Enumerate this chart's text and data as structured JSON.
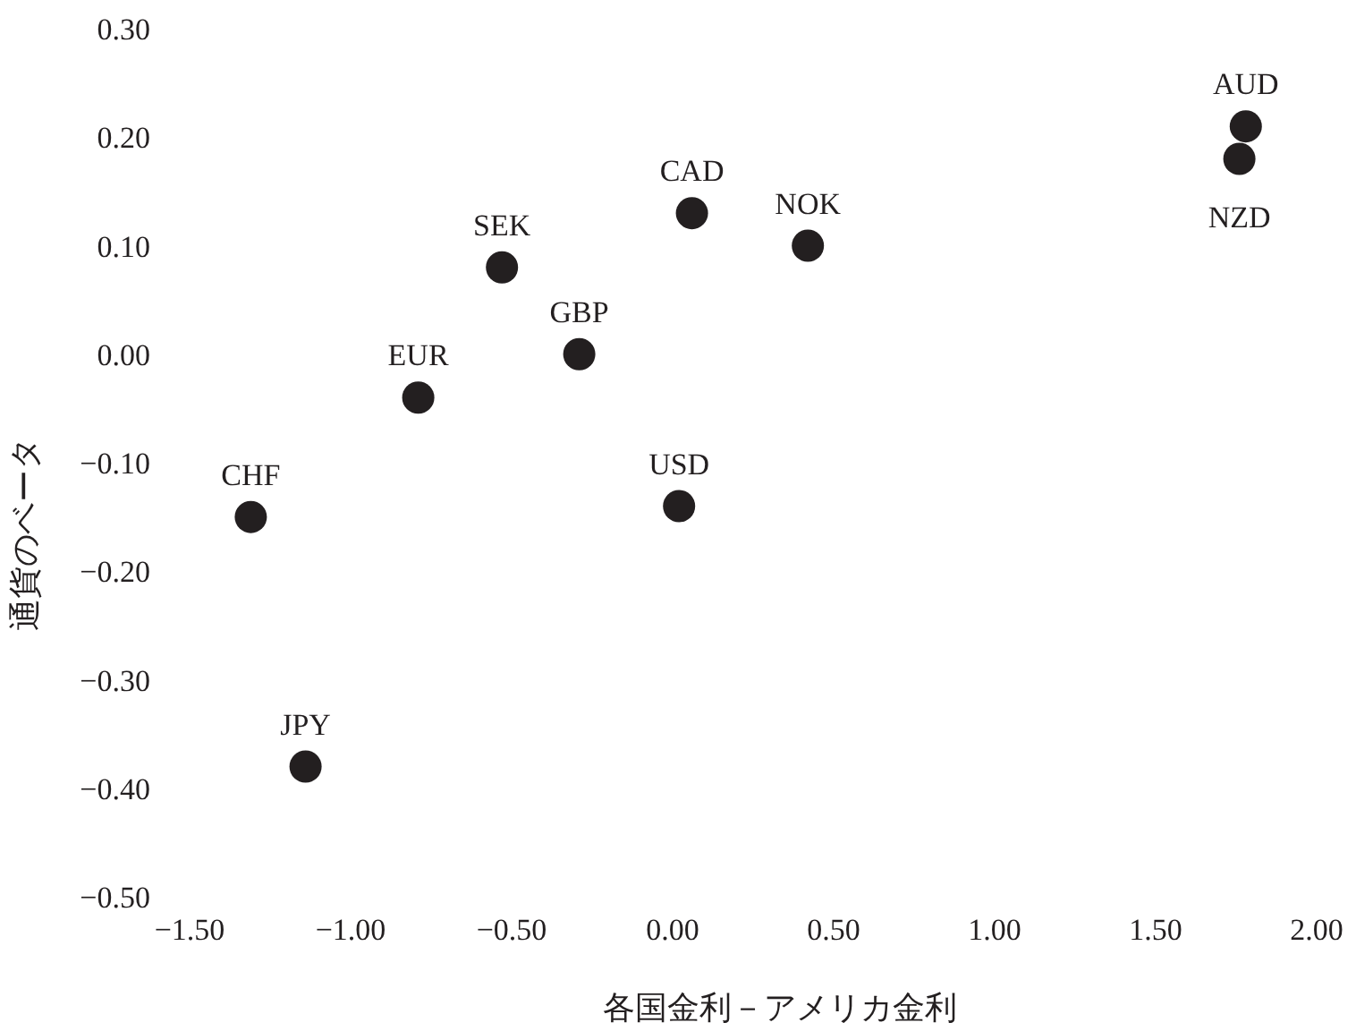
{
  "chart_data": {
    "type": "scatter",
    "xlabel": "各国金利－アメリカ金利",
    "ylabel": "通貨のベータ",
    "xlim": [
      -1.5,
      2.0
    ],
    "ylim": [
      -0.5,
      0.3
    ],
    "xticks": [
      {
        "value": -1.5,
        "label": "−1.50"
      },
      {
        "value": -1.0,
        "label": "−1.00"
      },
      {
        "value": -0.5,
        "label": "−0.50"
      },
      {
        "value": 0,
        "label": "0.00"
      },
      {
        "value": 0.5,
        "label": "0.50"
      },
      {
        "value": 1.0,
        "label": "1.00"
      },
      {
        "value": 1.5,
        "label": "1.50"
      },
      {
        "value": 2.0,
        "label": "2.00"
      }
    ],
    "yticks": [
      {
        "value": 0.3,
        "label": "0.30"
      },
      {
        "value": 0.2,
        "label": "0.20"
      },
      {
        "value": 0.1,
        "label": "0.10"
      },
      {
        "value": 0,
        "label": "0.00"
      },
      {
        "value": -0.1,
        "label": "−0.10"
      },
      {
        "value": -0.2,
        "label": "−0.20"
      },
      {
        "value": -0.3,
        "label": "−0.30"
      },
      {
        "value": -0.4,
        "label": "−0.40"
      },
      {
        "value": -0.5,
        "label": "−0.50"
      }
    ],
    "marker": "circle",
    "grid": false,
    "legend": false,
    "series": [
      {
        "name": "AUD",
        "color": "#231f20",
        "x": [
          1.78
        ],
        "values": [
          0.21
        ]
      },
      {
        "name": "NZD",
        "color": "#231f20",
        "x": [
          1.76
        ],
        "values": [
          0.18
        ]
      },
      {
        "name": "CAD",
        "color": "#231f20",
        "x": [
          0.06
        ],
        "values": [
          0.13
        ]
      },
      {
        "name": "NOK",
        "color": "#231f20",
        "x": [
          0.42
        ],
        "values": [
          0.1
        ]
      },
      {
        "name": "SEK",
        "color": "#231f20",
        "x": [
          -0.53
        ],
        "values": [
          0.08
        ]
      },
      {
        "name": "GBP",
        "color": "#231f20",
        "x": [
          -0.29
        ],
        "values": [
          0.0
        ]
      },
      {
        "name": "EUR",
        "color": "#231f20",
        "x": [
          -0.79
        ],
        "values": [
          -0.04
        ]
      },
      {
        "name": "CHF",
        "color": "#231f20",
        "x": [
          -1.31
        ],
        "values": [
          -0.15
        ]
      },
      {
        "name": "USD",
        "color": "#231f20",
        "x": [
          0.02
        ],
        "values": [
          -0.14
        ]
      },
      {
        "name": "JPY",
        "color": "#231f20",
        "x": [
          -1.14
        ],
        "values": [
          -0.38
        ]
      }
    ]
  }
}
